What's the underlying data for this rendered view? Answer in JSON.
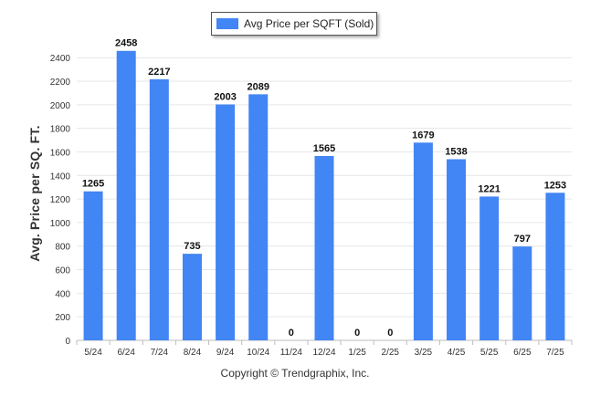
{
  "chart_data": {
    "type": "bar",
    "categories": [
      "5/24",
      "6/24",
      "7/24",
      "8/24",
      "9/24",
      "10/24",
      "11/24",
      "12/24",
      "1/25",
      "2/25",
      "3/25",
      "4/25",
      "5/25",
      "6/25",
      "7/25"
    ],
    "series": [
      {
        "name": "Avg Price per SQFT (Sold)",
        "values": [
          1265,
          2458,
          2217,
          735,
          2003,
          2089,
          0,
          1565,
          0,
          0,
          1679,
          1538,
          1221,
          797,
          1253
        ]
      }
    ],
    "ylabel": "Avg. Price per SQ. FT.",
    "xlabel": "",
    "ylim": [
      0,
      2400
    ],
    "yticks": [
      0,
      200,
      400,
      600,
      800,
      1000,
      1200,
      1400,
      1600,
      1800,
      2000,
      2200,
      2400
    ],
    "grid": true,
    "legend": "top-center",
    "bar_color": "#4285f4",
    "credit": "Copyright © Trendgraphix, Inc."
  }
}
